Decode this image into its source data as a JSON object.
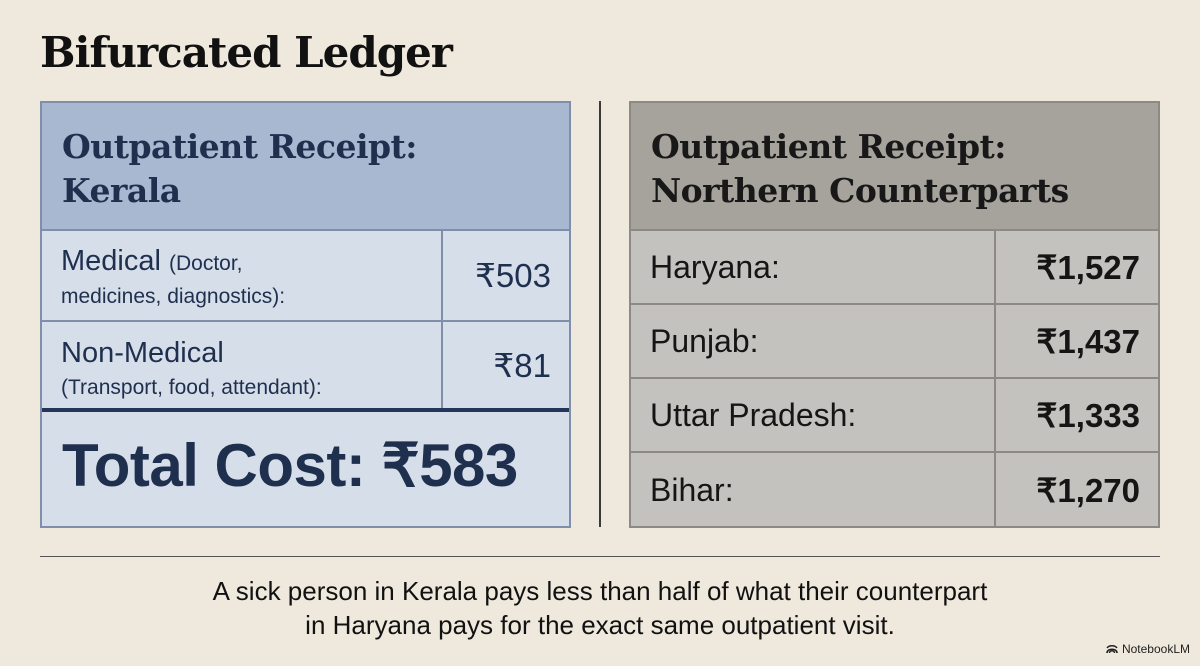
{
  "title": "Bifurcated Ledger",
  "kerala": {
    "heading_line1": "Outpatient Receipt:",
    "heading_line2": "Kerala",
    "rows": [
      {
        "label": "Medical",
        "sub_line1": "(Doctor,",
        "sub_line2": "medicines, diagnostics):",
        "value": "₹503"
      },
      {
        "label": "Non-Medical",
        "sub_line1": "(Transport, food, attendant):",
        "value": "₹81"
      }
    ],
    "total": "Total Cost: ₹583"
  },
  "north": {
    "heading_line1": "Outpatient Receipt:",
    "heading_line2": "Northern Counterparts",
    "rows": [
      {
        "label": "Haryana:",
        "value": "₹1,527"
      },
      {
        "label": "Punjab:",
        "value": "₹1,437"
      },
      {
        "label": "Uttar Pradesh:",
        "value": "₹1,333"
      },
      {
        "label": "Bihar:",
        "value": "₹1,270"
      }
    ]
  },
  "caption": {
    "line1": "A sick person in Kerala pays less than half of what their counterpart",
    "line2": "in Haryana pays for the exact same outpatient visit."
  },
  "brand": "NotebookLM"
}
